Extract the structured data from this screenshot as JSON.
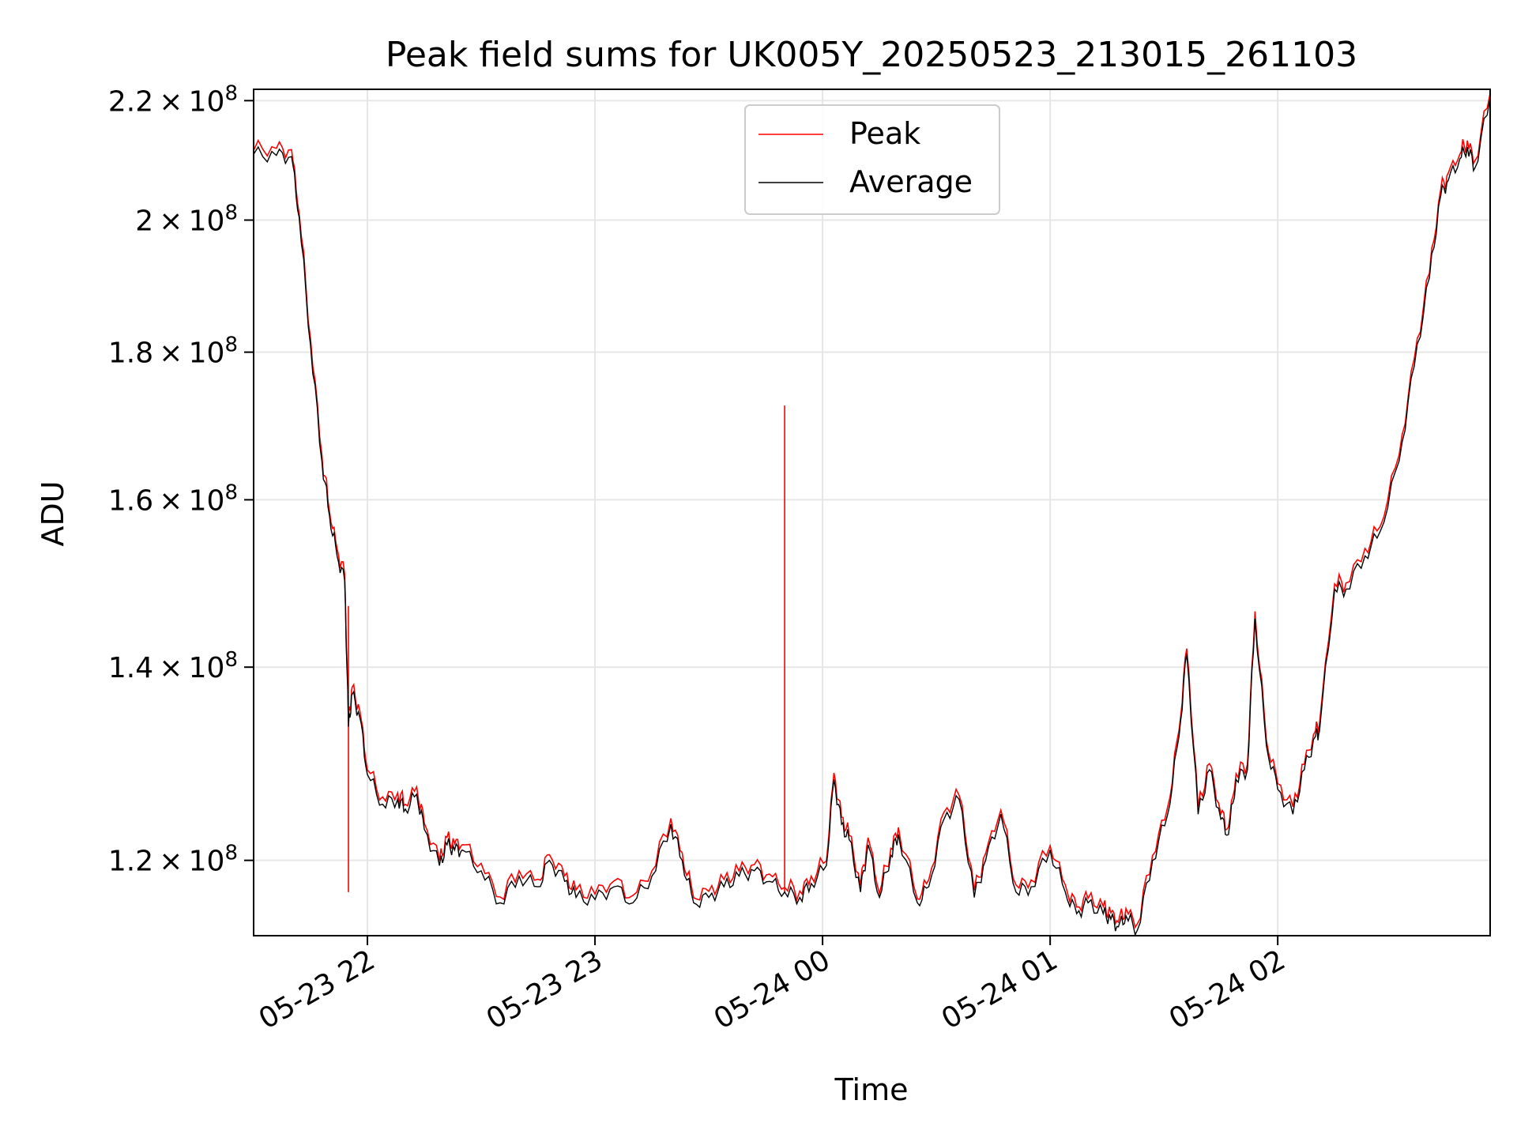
{
  "chart_data": {
    "type": "line",
    "title": "Peak field sums for UK005Y_20250523_213015_261103",
    "xlabel": "Time",
    "ylabel": "ADU",
    "yscale": "log",
    "xlim": [
      "2025-05-23 21:30",
      "2025-05-24 02:56"
    ],
    "ylim": [
      113000000,
      222000000
    ],
    "x_ticks": [
      "05-23 22",
      "05-23 23",
      "05-24 00",
      "05-24 01",
      "05-24 02"
    ],
    "x_tick_values": [
      "2025-05-23 22:00",
      "2025-05-23 23:00",
      "2025-05-24 00:00",
      "2025-05-24 01:00",
      "2025-05-24 02:00"
    ],
    "y_ticks": [
      {
        "base": "1.2",
        "exp": "8",
        "value": 120000000
      },
      {
        "base": "1.4",
        "exp": "8",
        "value": 140000000
      },
      {
        "base": "1.6",
        "exp": "8",
        "value": 160000000
      },
      {
        "base": "1.8",
        "exp": "8",
        "value": 180000000
      },
      {
        "base": "2",
        "exp": "8",
        "value": 200000000
      },
      {
        "base": "2.2",
        "exp": "8",
        "value": 220000000
      }
    ],
    "grid": true,
    "legend_position": "top-center",
    "series": [
      {
        "name": "Peak",
        "color": "#ff0000",
        "spikes": [
          {
            "x": "2025-05-23 23:50",
            "y": 172500000
          },
          {
            "x": "2025-05-23 21:55",
            "y": 147000000
          }
        ]
      },
      {
        "name": "Average",
        "color": "#000000"
      }
    ],
    "x": [
      "2025-05-23 21:30",
      "2025-05-23 21:36",
      "2025-05-23 21:40",
      "2025-05-23 21:42",
      "2025-05-23 21:45",
      "2025-05-23 21:48",
      "2025-05-23 21:50",
      "2025-05-23 21:52",
      "2025-05-23 21:54",
      "2025-05-23 21:55",
      "2025-05-23 21:56",
      "2025-05-23 21:58",
      "2025-05-23 22:00",
      "2025-05-23 22:04",
      "2025-05-23 22:08",
      "2025-05-23 22:10",
      "2025-05-23 22:13",
      "2025-05-23 22:15",
      "2025-05-23 22:19",
      "2025-05-23 22:21",
      "2025-05-23 22:23",
      "2025-05-23 22:25",
      "2025-05-23 22:30",
      "2025-05-23 22:35",
      "2025-05-23 22:40",
      "2025-05-23 22:45",
      "2025-05-23 22:48",
      "2025-05-23 22:52",
      "2025-05-23 22:55",
      "2025-05-23 23:00",
      "2025-05-23 23:05",
      "2025-05-23 23:10",
      "2025-05-23 23:15",
      "2025-05-23 23:20",
      "2025-05-23 23:23",
      "2025-05-23 23:26",
      "2025-05-23 23:30",
      "2025-05-23 23:34",
      "2025-05-23 23:38",
      "2025-05-23 23:42",
      "2025-05-23 23:46",
      "2025-05-23 23:50",
      "2025-05-23 23:54",
      "2025-05-23 23:57",
      "2025-05-24 00:01",
      "2025-05-24 00:03",
      "2025-05-24 00:05",
      "2025-05-24 00:07",
      "2025-05-24 00:10",
      "2025-05-24 00:12",
      "2025-05-24 00:15",
      "2025-05-24 00:18",
      "2025-05-24 00:20",
      "2025-05-24 00:25",
      "2025-05-24 00:28",
      "2025-05-24 00:32",
      "2025-05-24 00:36",
      "2025-05-24 00:40",
      "2025-05-24 00:43",
      "2025-05-24 00:47",
      "2025-05-24 00:51",
      "2025-05-24 00:55",
      "2025-05-24 01:00",
      "2025-05-24 01:04",
      "2025-05-24 01:07",
      "2025-05-24 01:10",
      "2025-05-24 01:14",
      "2025-05-24 01:16",
      "2025-05-24 01:18",
      "2025-05-24 01:20",
      "2025-05-24 01:23",
      "2025-05-24 01:27",
      "2025-05-24 01:31",
      "2025-05-24 01:34",
      "2025-05-24 01:36",
      "2025-05-24 01:39",
      "2025-05-24 01:42",
      "2025-05-24 01:45",
      "2025-05-24 01:47",
      "2025-05-24 01:49",
      "2025-05-24 01:52",
      "2025-05-24 01:54",
      "2025-05-24 01:57",
      "2025-05-24 02:00",
      "2025-05-24 02:04",
      "2025-05-24 02:07",
      "2025-05-24 02:10",
      "2025-05-24 02:11",
      "2025-05-24 02:15",
      "2025-05-24 02:18",
      "2025-05-24 02:23",
      "2025-05-24 02:27",
      "2025-05-24 02:32",
      "2025-05-24 02:36",
      "2025-05-24 02:40",
      "2025-05-24 02:43",
      "2025-05-24 02:45",
      "2025-05-24 02:48",
      "2025-05-24 02:50",
      "2025-05-24 02:52",
      "2025-05-24 02:56"
    ],
    "values": [
      210800000,
      210600000,
      210400000,
      200500000,
      181000000,
      165000000,
      158000000,
      153000000,
      150000000,
      133500000,
      137000000,
      134500000,
      128500000,
      125500000,
      126000000,
      125000000,
      126500000,
      123000000,
      119500000,
      121500000,
      121000000,
      121000000,
      119000000,
      116000000,
      118500000,
      117500000,
      120000000,
      118000000,
      116500000,
      116300000,
      117500000,
      116000000,
      118500000,
      123500000,
      120000000,
      116000000,
      116500000,
      117500000,
      118500000,
      119000000,
      118000000,
      117000000,
      116500000,
      117800000,
      119500000,
      128000000,
      123500000,
      122000000,
      117000000,
      121500000,
      116500000,
      120500000,
      122500000,
      116000000,
      117500000,
      124000000,
      126000000,
      116500000,
      120000000,
      124500000,
      117000000,
      117500000,
      121000000,
      117000000,
      115000000,
      116000000,
      115000000,
      114500000,
      113800000,
      114800000,
      113500000,
      120000000,
      124500000,
      132500000,
      141500000,
      124500000,
      129000000,
      124000000,
      122500000,
      128000000,
      129000000,
      145500000,
      131500000,
      127000000,
      124500000,
      129000000,
      132500000,
      133000000,
      149000000,
      149000000,
      153000000,
      156000000,
      165000000,
      178000000,
      191000000,
      204000000,
      206500000,
      210000000,
      212000000,
      208500000,
      220500000
    ]
  }
}
